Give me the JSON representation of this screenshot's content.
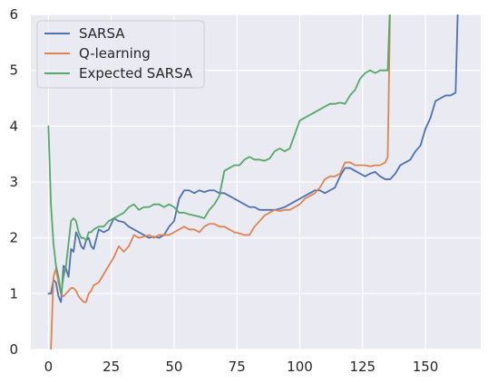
{
  "colors": {
    "background": "#eaeaf2",
    "grid": "#ffffff",
    "legend_bg": "#eaeaf2",
    "legend_border": "#cccccc"
  },
  "chart_data": {
    "type": "line",
    "title": "",
    "xlabel": "",
    "ylabel": "",
    "xlim": [
      -7,
      172
    ],
    "ylim": [
      0,
      6
    ],
    "xticks": [
      0,
      25,
      50,
      75,
      100,
      125,
      150
    ],
    "yticks": [
      0,
      1,
      2,
      3,
      4,
      5,
      6
    ],
    "grid": true,
    "legend": "upper-left",
    "series": [
      {
        "name": "SARSA",
        "color": "#4c72b0",
        "x": [
          0,
          1,
          2,
          3,
          4,
          5,
          6,
          7,
          8,
          9,
          10,
          11,
          12,
          13,
          14,
          15,
          16,
          17,
          18,
          20,
          22,
          24,
          26,
          28,
          30,
          32,
          34,
          36,
          38,
          40,
          42,
          44,
          46,
          48,
          50,
          52,
          54,
          56,
          58,
          60,
          62,
          64,
          66,
          68,
          70,
          72,
          74,
          76,
          78,
          80,
          82,
          84,
          86,
          88,
          90,
          92,
          94,
          96,
          98,
          100,
          102,
          104,
          106,
          108,
          110,
          112,
          114,
          116,
          118,
          120,
          122,
          124,
          126,
          128,
          130,
          132,
          134,
          136,
          138,
          140,
          142,
          144,
          146,
          148,
          150,
          152,
          154,
          156,
          158,
          160,
          162,
          163
        ],
        "y": [
          1.0,
          1.0,
          1.25,
          1.2,
          0.95,
          0.85,
          1.5,
          1.45,
          1.3,
          1.8,
          1.75,
          2.1,
          2.0,
          1.85,
          1.8,
          1.95,
          2.0,
          1.85,
          1.8,
          2.15,
          2.1,
          2.15,
          2.35,
          2.3,
          2.28,
          2.2,
          2.15,
          2.1,
          2.05,
          2.0,
          2.02,
          2.0,
          2.05,
          2.2,
          2.3,
          2.7,
          2.85,
          2.85,
          2.8,
          2.85,
          2.82,
          2.85,
          2.85,
          2.8,
          2.8,
          2.75,
          2.7,
          2.65,
          2.6,
          2.55,
          2.55,
          2.5,
          2.5,
          2.5,
          2.5,
          2.52,
          2.55,
          2.6,
          2.65,
          2.7,
          2.75,
          2.8,
          2.85,
          2.85,
          2.8,
          2.85,
          2.9,
          3.1,
          3.25,
          3.25,
          3.2,
          3.15,
          3.1,
          3.15,
          3.18,
          3.1,
          3.05,
          3.05,
          3.15,
          3.3,
          3.35,
          3.4,
          3.55,
          3.65,
          3.95,
          4.15,
          4.45,
          4.5,
          4.55,
          4.55,
          4.6,
          6.3
        ]
      },
      {
        "name": "Q-learning",
        "color": "#dd8452",
        "x": [
          1,
          2,
          3,
          4,
          5,
          6,
          7,
          8,
          9,
          10,
          11,
          12,
          13,
          14,
          15,
          16,
          17,
          18,
          20,
          22,
          24,
          26,
          28,
          30,
          32,
          34,
          36,
          38,
          40,
          42,
          44,
          46,
          48,
          50,
          52,
          54,
          56,
          58,
          60,
          62,
          64,
          66,
          68,
          70,
          72,
          74,
          76,
          78,
          80,
          82,
          84,
          86,
          88,
          90,
          92,
          94,
          96,
          98,
          100,
          102,
          104,
          106,
          108,
          110,
          112,
          114,
          116,
          118,
          120,
          122,
          124,
          126,
          128,
          130,
          132,
          134,
          135,
          136
        ],
        "y": [
          0.0,
          1.3,
          1.45,
          1.2,
          1.0,
          0.95,
          1.0,
          1.05,
          1.1,
          1.1,
          1.05,
          0.95,
          0.9,
          0.85,
          0.85,
          1.0,
          1.05,
          1.15,
          1.2,
          1.35,
          1.5,
          1.65,
          1.85,
          1.75,
          1.85,
          2.05,
          2.0,
          2.02,
          2.05,
          2.0,
          2.05,
          2.05,
          2.05,
          2.1,
          2.15,
          2.2,
          2.15,
          2.15,
          2.1,
          2.2,
          2.25,
          2.25,
          2.2,
          2.2,
          2.15,
          2.1,
          2.08,
          2.05,
          2.05,
          2.2,
          2.3,
          2.4,
          2.45,
          2.5,
          2.48,
          2.5,
          2.5,
          2.55,
          2.6,
          2.7,
          2.75,
          2.8,
          2.9,
          3.05,
          3.1,
          3.1,
          3.15,
          3.35,
          3.35,
          3.3,
          3.3,
          3.3,
          3.28,
          3.3,
          3.3,
          3.35,
          3.45,
          6.3
        ]
      },
      {
        "name": "Expected SARSA",
        "color": "#55a868",
        "x": [
          0,
          1,
          2,
          3,
          4,
          5,
          6,
          7,
          8,
          9,
          10,
          11,
          12,
          13,
          14,
          15,
          16,
          17,
          18,
          20,
          22,
          24,
          26,
          28,
          30,
          32,
          34,
          36,
          38,
          40,
          42,
          44,
          46,
          48,
          50,
          52,
          54,
          56,
          58,
          60,
          62,
          64,
          66,
          68,
          70,
          72,
          74,
          76,
          78,
          80,
          82,
          84,
          86,
          88,
          90,
          92,
          94,
          96,
          98,
          100,
          102,
          104,
          106,
          108,
          110,
          112,
          114,
          116,
          118,
          120,
          122,
          124,
          126,
          128,
          130,
          132,
          134,
          135,
          136
        ],
        "y": [
          4.0,
          2.6,
          1.9,
          1.5,
          1.3,
          1.0,
          1.3,
          1.5,
          1.9,
          2.3,
          2.35,
          2.3,
          2.1,
          2.0,
          2.0,
          1.95,
          2.1,
          2.1,
          2.15,
          2.2,
          2.2,
          2.3,
          2.35,
          2.4,
          2.45,
          2.55,
          2.6,
          2.5,
          2.55,
          2.55,
          2.6,
          2.6,
          2.55,
          2.6,
          2.55,
          2.45,
          2.45,
          2.42,
          2.4,
          2.38,
          2.35,
          2.5,
          2.6,
          2.75,
          3.2,
          3.25,
          3.3,
          3.3,
          3.4,
          3.45,
          3.4,
          3.4,
          3.38,
          3.42,
          3.55,
          3.6,
          3.55,
          3.6,
          3.85,
          4.1,
          4.15,
          4.2,
          4.25,
          4.3,
          4.35,
          4.4,
          4.4,
          4.42,
          4.4,
          4.55,
          4.65,
          4.85,
          4.95,
          5.0,
          4.95,
          5.0,
          5.0,
          5.0,
          6.3
        ]
      }
    ]
  }
}
